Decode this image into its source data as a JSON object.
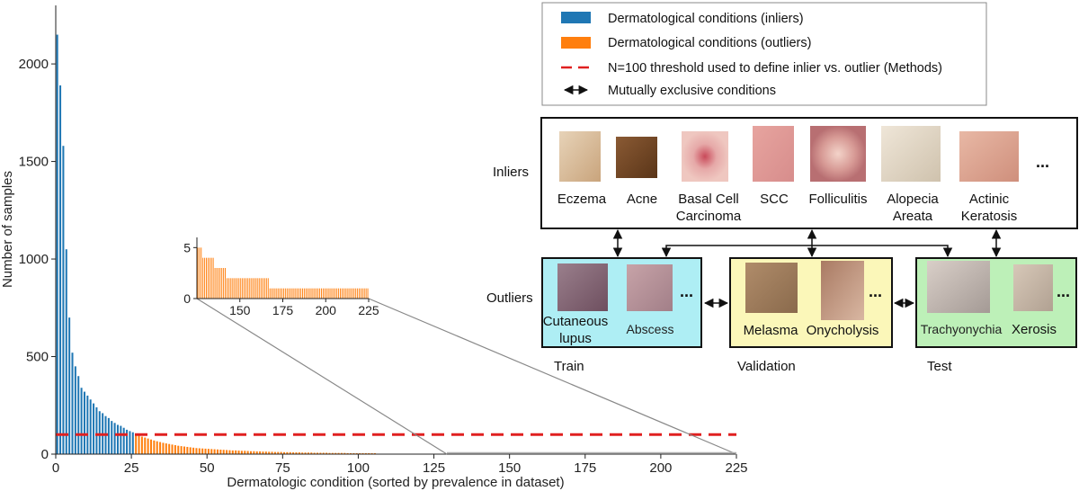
{
  "chart_data": {
    "type": "bar",
    "xlabel": "Dermatologic condition (sorted by prevalence in dataset)",
    "ylabel": "Number of samples",
    "xlim": [
      0,
      225
    ],
    "ylim": [
      0,
      2300
    ],
    "xticks": [
      0,
      25,
      50,
      75,
      100,
      125,
      150,
      175,
      200,
      225
    ],
    "yticks": [
      0,
      500,
      1000,
      1500,
      2000
    ],
    "threshold": 100,
    "inlier_color": "#1f77b4",
    "outlier_color": "#ff7f0e",
    "threshold_color": "#e02020",
    "series": [
      {
        "name": "Dermatological conditions (inliers)",
        "values": [
          2150,
          1890,
          1580,
          1050,
          700,
          520,
          450,
          400,
          340,
          320,
          300,
          280,
          260,
          240,
          220,
          210,
          195,
          185,
          170,
          160,
          150,
          145,
          135,
          125,
          118,
          112
        ]
      },
      {
        "name": "Dermatological conditions (outliers)",
        "values": [
          98,
          95,
          90,
          85,
          80,
          75,
          70,
          66,
          62,
          58,
          55,
          52,
          49,
          46,
          43,
          41,
          39,
          37,
          35,
          33,
          31,
          30,
          29,
          28,
          27,
          26,
          25,
          24,
          23,
          22,
          21,
          20,
          19,
          19,
          18,
          17,
          17,
          16,
          15,
          15,
          14,
          14,
          13,
          13,
          12,
          12,
          11,
          11,
          11,
          10,
          10,
          10,
          9,
          9,
          9,
          8,
          8,
          8,
          8,
          7,
          7,
          7,
          7,
          7,
          6,
          6,
          6,
          6,
          6,
          6,
          5,
          5,
          5,
          5,
          5,
          5,
          5,
          5,
          5,
          5
        ]
      }
    ],
    "inset": {
      "xticks": [
        150,
        175,
        200,
        225
      ],
      "yticks": [
        0,
        5
      ],
      "xlim": [
        125,
        225
      ],
      "ylim": [
        0,
        6
      ],
      "values": [
        5,
        5,
        5,
        4,
        4,
        4,
        4,
        4,
        4,
        4,
        3,
        3,
        3,
        3,
        3,
        3,
        3,
        2,
        2,
        2,
        2,
        2,
        2,
        2,
        2,
        2,
        2,
        2,
        2,
        2,
        2,
        2,
        2,
        2,
        2,
        2,
        2,
        2,
        2,
        2,
        2,
        2,
        1,
        1,
        1,
        1,
        1,
        1,
        1,
        1,
        1,
        1,
        1,
        1,
        1,
        1,
        1,
        1,
        1,
        1,
        1,
        1,
        1,
        1,
        1,
        1,
        1,
        1,
        1,
        1,
        1,
        1,
        1,
        1,
        1,
        1,
        1,
        1,
        1,
        1,
        1,
        1,
        1,
        1,
        1,
        1,
        1,
        1,
        1,
        1,
        1,
        1,
        1,
        1,
        1,
        1,
        1,
        1,
        1,
        1
      ]
    }
  },
  "legend": {
    "inliers": "Dermatological conditions (inliers)",
    "outliers": "Dermatological conditions (outliers)",
    "threshold": "N=100 threshold used to define inlier vs. outlier (Methods)",
    "exclusive": "Mutually exclusive conditions"
  },
  "diagram": {
    "inliers_label": "Inliers",
    "outliers_label": "Outliers",
    "inliers": [
      {
        "lines": [
          "Eczema"
        ]
      },
      {
        "lines": [
          "Acne"
        ]
      },
      {
        "lines": [
          "Basal Cell",
          "Carcinoma"
        ]
      },
      {
        "lines": [
          "SCC"
        ]
      },
      {
        "lines": [
          "Folliculitis"
        ]
      },
      {
        "lines": [
          "Alopecia",
          "Areata"
        ]
      },
      {
        "lines": [
          "Actinic",
          "Keratosis"
        ]
      }
    ],
    "ellipsis": "...",
    "train": {
      "caption": "Train",
      "items": [
        {
          "lines": [
            "Cutaneous",
            "lupus"
          ]
        },
        {
          "lines": [
            "Abscess"
          ]
        }
      ]
    },
    "validation": {
      "caption": "Validation",
      "items": [
        {
          "lines": [
            "Melasma"
          ]
        },
        {
          "lines": [
            "Onycholysis"
          ]
        }
      ]
    },
    "test": {
      "caption": "Test",
      "items": [
        {
          "lines": [
            "Trachyonychia"
          ]
        },
        {
          "lines": [
            "Xerosis"
          ]
        }
      ]
    }
  }
}
